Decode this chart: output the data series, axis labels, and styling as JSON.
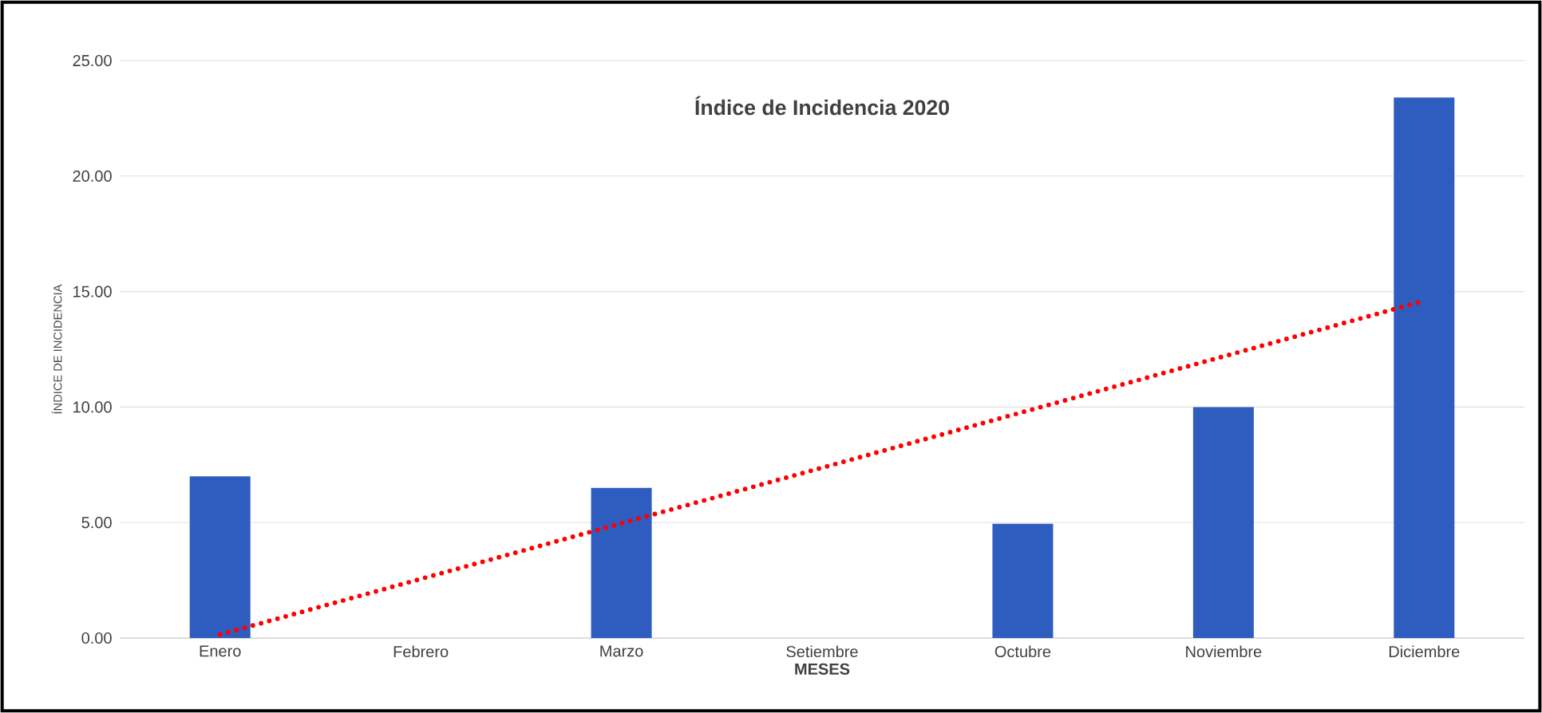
{
  "chart_data": {
    "type": "bar",
    "title": "Índice de Incidencia 2020",
    "xlabel": "MESES",
    "ylabel": "ÍNDICE DE INCIDENCIA",
    "categories": [
      "Enero",
      "Febrero",
      "Marzo",
      "Setiembre",
      "Octubre",
      "Noviembre",
      "Diciembre"
    ],
    "series": [
      {
        "color": "#2f5cbf",
        "values": [
          7.0,
          0,
          6.5,
          0,
          4.95,
          10.0,
          23.4
        ]
      },
      {
        "type": "line",
        "color": "#ff0000",
        "line_style": "dotted",
        "x": [
          "Enero",
          "Diciembre"
        ],
        "values": [
          0.15,
          14.6
        ]
      }
    ],
    "ylim": [
      0,
      25
    ],
    "yticks": [
      {
        "value": 0,
        "label": "0.00"
      },
      {
        "value": 5,
        "label": "5.00"
      },
      {
        "value": 10,
        "label": "10.00"
      },
      {
        "value": 15,
        "label": "15.00"
      },
      {
        "value": 20,
        "label": "20.00"
      },
      {
        "value": 25,
        "label": "25.00"
      }
    ],
    "grid": "y"
  }
}
